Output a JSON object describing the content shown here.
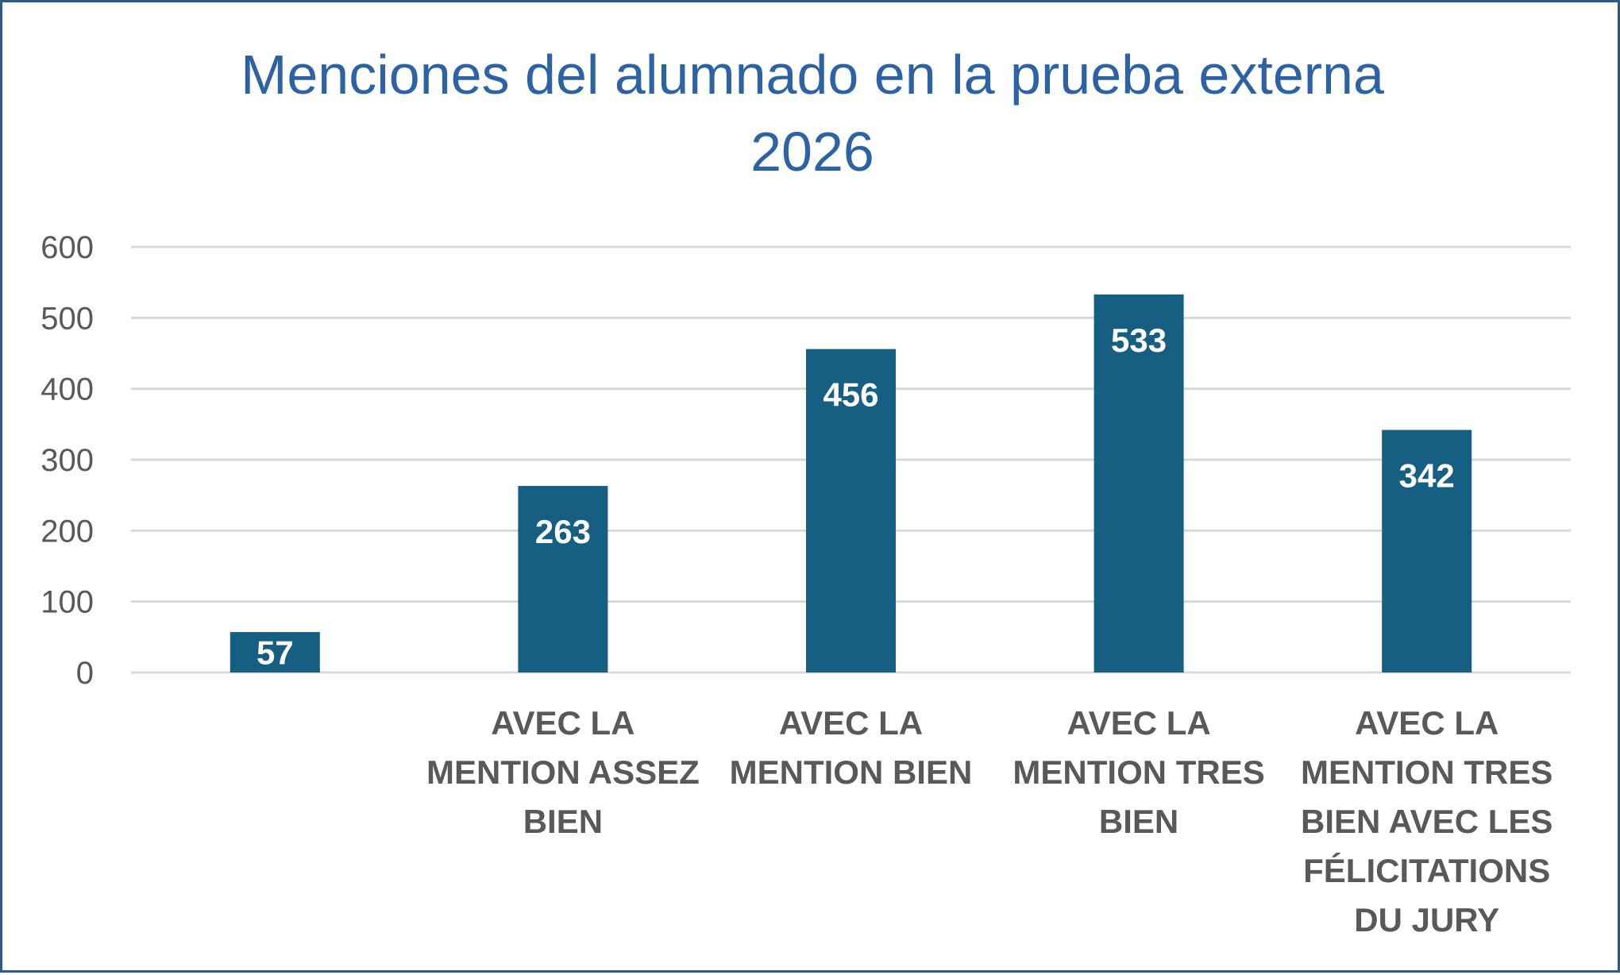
{
  "chart_data": {
    "type": "bar",
    "title": "Menciones del alumnado en la prueba externa 2026",
    "title_lines": [
      "Menciones del alumnado en la prueba externa",
      "2026"
    ],
    "categories": [
      "",
      "AVEC LA MENTION ASSEZ BIEN",
      "AVEC LA MENTION BIEN",
      "AVEC LA MENTION TRES BIEN",
      "AVEC LA MENTION TRES BIEN AVEC LES FÉLICITATIONS DU JURY"
    ],
    "category_lines": [
      [],
      [
        "AVEC LA",
        "MENTION ASSEZ",
        "BIEN"
      ],
      [
        "AVEC LA",
        "MENTION BIEN"
      ],
      [
        "AVEC LA",
        "MENTION TRES",
        "BIEN"
      ],
      [
        "AVEC LA",
        "MENTION TRES",
        "BIEN AVEC LES",
        "FÉLICITATIONS",
        "DU JURY"
      ]
    ],
    "values": [
      57,
      263,
      456,
      533,
      342
    ],
    "data_labels": [
      "57",
      "263",
      "456",
      "533",
      "342"
    ],
    "ylim": [
      0,
      600
    ],
    "yticks": [
      0,
      100,
      200,
      300,
      400,
      500,
      600
    ],
    "xlabel": "",
    "ylabel": "",
    "grid": true,
    "legend": "none",
    "colors": {
      "bar": "#165f82",
      "title": "#2d63a4",
      "grid": "#d9d9d9",
      "tick_text": "#595959",
      "border": "#2e5b86",
      "data_label": "#ffffff"
    }
  }
}
